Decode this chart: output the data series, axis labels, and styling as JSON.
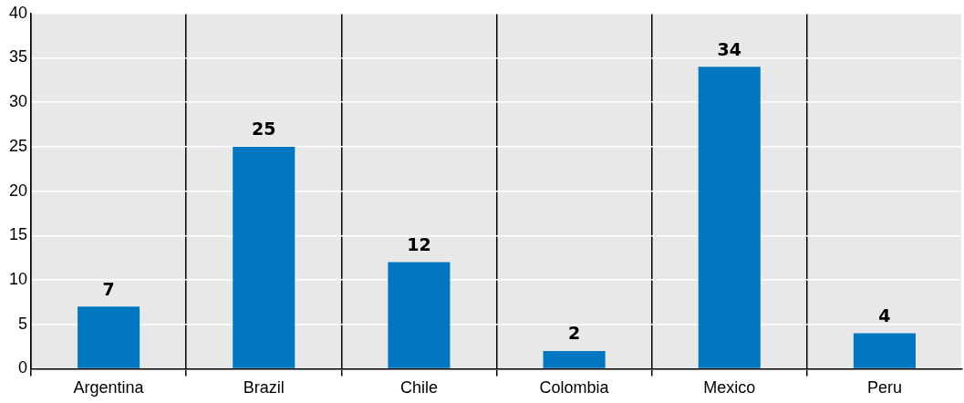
{
  "chart_data": {
    "type": "bar",
    "categories": [
      "Argentina",
      "Brazil",
      "Chile",
      "Colombia",
      "Mexico",
      "Peru"
    ],
    "values": [
      7,
      25,
      12,
      2,
      34,
      4
    ],
    "color": "#0077c0",
    "ylim": [
      0,
      40
    ],
    "yticks": [
      0,
      5,
      10,
      15,
      20,
      25,
      30,
      35,
      40
    ],
    "grid": true,
    "legend": false,
    "data_labels": true
  }
}
